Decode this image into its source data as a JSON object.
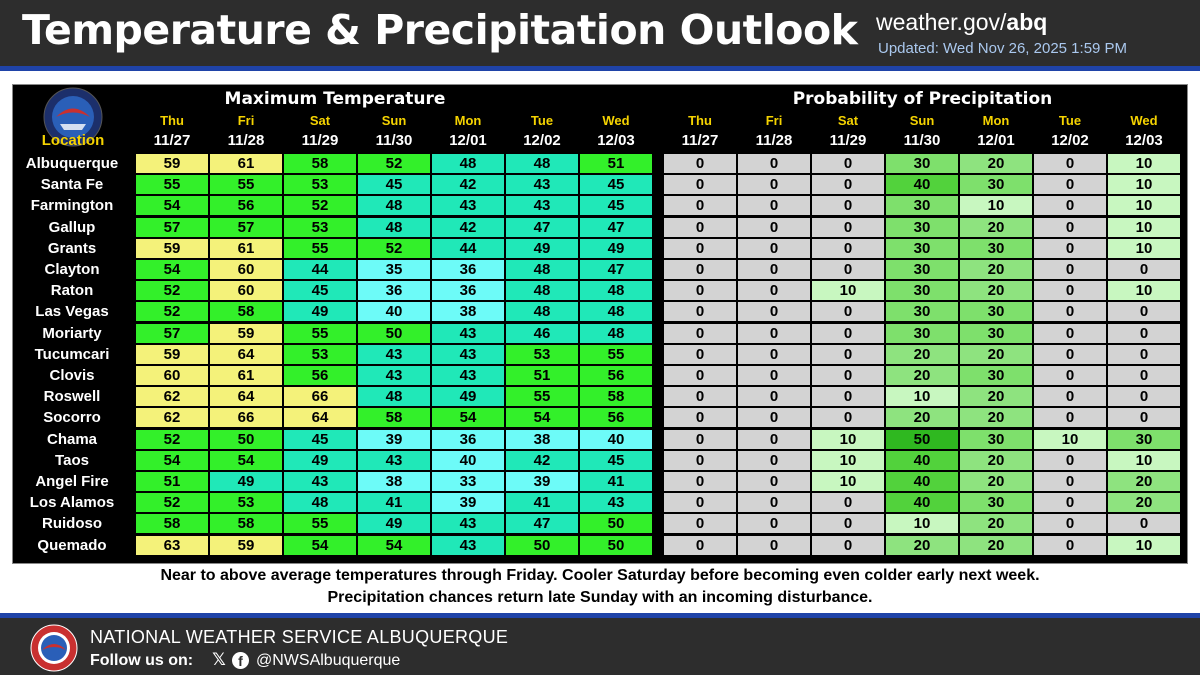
{
  "header": {
    "title": "Temperature & Precipitation Outlook",
    "site_prefix": "weather.gov/",
    "site_office": "abq",
    "updated": "Updated: Wed Nov 26, 2025 1:59 PM"
  },
  "table": {
    "temp_title": "Maximum Temperature",
    "pop_title": "Probability of Precipitation",
    "location_header": "Location",
    "days": [
      {
        "day": "Thu",
        "date": "11/27"
      },
      {
        "day": "Fri",
        "date": "11/28"
      },
      {
        "day": "Sat",
        "date": "11/29"
      },
      {
        "day": "Sun",
        "date": "11/30"
      },
      {
        "day": "Mon",
        "date": "12/01"
      },
      {
        "day": "Tue",
        "date": "12/02"
      },
      {
        "day": "Wed",
        "date": "12/03"
      }
    ],
    "rows": [
      {
        "loc": "Albuquerque",
        "temps": [
          59,
          61,
          58,
          52,
          48,
          48,
          51
        ],
        "pops": [
          0,
          0,
          0,
          30,
          20,
          0,
          10
        ]
      },
      {
        "loc": "Santa Fe",
        "temps": [
          55,
          55,
          53,
          45,
          42,
          43,
          45
        ],
        "pops": [
          0,
          0,
          0,
          40,
          30,
          0,
          10
        ]
      },
      {
        "loc": "Farmington",
        "temps": [
          54,
          56,
          52,
          48,
          43,
          43,
          45
        ],
        "pops": [
          0,
          0,
          0,
          30,
          10,
          0,
          10
        ]
      },
      {
        "loc": "Gallup",
        "temps": [
          57,
          57,
          53,
          48,
          42,
          47,
          47
        ],
        "pops": [
          0,
          0,
          0,
          30,
          20,
          0,
          10
        ]
      },
      {
        "loc": "Grants",
        "temps": [
          59,
          61,
          55,
          52,
          44,
          49,
          49
        ],
        "pops": [
          0,
          0,
          0,
          30,
          30,
          0,
          10
        ]
      },
      {
        "loc": "Clayton",
        "temps": [
          54,
          60,
          44,
          35,
          36,
          48,
          47
        ],
        "pops": [
          0,
          0,
          0,
          30,
          20,
          0,
          0
        ]
      },
      {
        "loc": "Raton",
        "temps": [
          52,
          60,
          45,
          36,
          36,
          48,
          48
        ],
        "pops": [
          0,
          0,
          10,
          30,
          20,
          0,
          10
        ]
      },
      {
        "loc": "Las Vegas",
        "temps": [
          52,
          58,
          49,
          40,
          38,
          48,
          48
        ],
        "pops": [
          0,
          0,
          0,
          30,
          30,
          0,
          0
        ]
      },
      {
        "loc": "Moriarty",
        "temps": [
          57,
          59,
          55,
          50,
          43,
          46,
          48
        ],
        "pops": [
          0,
          0,
          0,
          30,
          30,
          0,
          0
        ]
      },
      {
        "loc": "Tucumcari",
        "temps": [
          59,
          64,
          53,
          43,
          43,
          53,
          55
        ],
        "pops": [
          0,
          0,
          0,
          20,
          20,
          0,
          0
        ]
      },
      {
        "loc": "Clovis",
        "temps": [
          60,
          61,
          56,
          43,
          43,
          51,
          56
        ],
        "pops": [
          0,
          0,
          0,
          20,
          30,
          0,
          0
        ]
      },
      {
        "loc": "Roswell",
        "temps": [
          62,
          64,
          66,
          48,
          49,
          55,
          58
        ],
        "pops": [
          0,
          0,
          0,
          10,
          20,
          0,
          0
        ]
      },
      {
        "loc": "Socorro",
        "temps": [
          62,
          66,
          64,
          58,
          54,
          54,
          56
        ],
        "pops": [
          0,
          0,
          0,
          20,
          20,
          0,
          0
        ]
      },
      {
        "loc": "Chama",
        "temps": [
          52,
          50,
          45,
          39,
          36,
          38,
          40
        ],
        "pops": [
          0,
          0,
          10,
          50,
          30,
          10,
          30
        ]
      },
      {
        "loc": "Taos",
        "temps": [
          54,
          54,
          49,
          43,
          40,
          42,
          45
        ],
        "pops": [
          0,
          0,
          10,
          40,
          20,
          0,
          10
        ]
      },
      {
        "loc": "Angel Fire",
        "temps": [
          51,
          49,
          43,
          38,
          33,
          39,
          41
        ],
        "pops": [
          0,
          0,
          10,
          40,
          20,
          0,
          20
        ]
      },
      {
        "loc": "Los Alamos",
        "temps": [
          52,
          53,
          48,
          41,
          39,
          41,
          43
        ],
        "pops": [
          0,
          0,
          0,
          40,
          30,
          0,
          20
        ]
      },
      {
        "loc": "Ruidoso",
        "temps": [
          58,
          58,
          55,
          49,
          43,
          47,
          50
        ],
        "pops": [
          0,
          0,
          0,
          10,
          20,
          0,
          0
        ]
      },
      {
        "loc": "Quemado",
        "temps": [
          63,
          59,
          54,
          54,
          43,
          50,
          50
        ],
        "pops": [
          0,
          0,
          0,
          20,
          20,
          0,
          10
        ]
      }
    ]
  },
  "colors": {
    "temp_cool": "#6dfbf8",
    "temp_mild": "#20e8b8",
    "temp_warm": "#33f02a",
    "temp_hot": "#f4f27a",
    "pop_0": "#d3d3d3",
    "pop_10": "#c8f7c0",
    "pop_20": "#8ee37f",
    "pop_30": "#7ee06c",
    "pop_40": "#52d23c",
    "pop_50": "#2fb820"
  },
  "caption": {
    "line1": "Near to above average temperatures through Friday. Cooler Saturday before becoming even colder early next week.",
    "line2": "Precipitation chances return late Sunday with an incoming disturbance."
  },
  "footer": {
    "office": "NATIONAL WEATHER SERVICE ALBUQUERQUE",
    "follow": "Follow us on:",
    "handle": "@NWSAlbuquerque"
  }
}
